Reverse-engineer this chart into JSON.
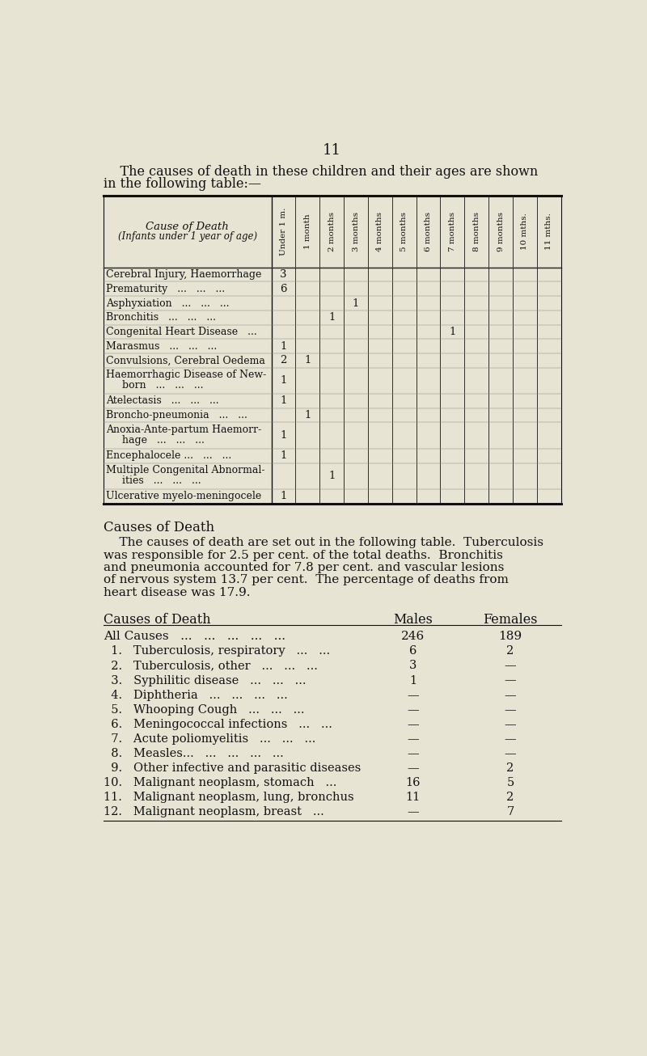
{
  "bg_color": "#e8e4d4",
  "page_number": "11",
  "intro_text_line1": "    The causes of death in these children and their ages are shown",
  "intro_text_line2": "in the following table:—",
  "table1": {
    "col_header_label_line1": "Cause of Death",
    "col_header_label_line2": "(Infants under 1 year of age)",
    "col_headers": [
      "Under 1 m.",
      "1 month",
      "2 months",
      "3 months",
      "4 months",
      "5 months",
      "6 months",
      "7 months",
      "8 months",
      "9 months",
      "10 mths.",
      "11 mths."
    ],
    "rows": [
      {
        "cause1": "Cerebral Injury, Haemorrhage",
        "cause2": "",
        "values": [
          "3",
          "",
          "",
          "",
          "",
          "",
          "",
          "",
          "",
          "",
          "",
          ""
        ]
      },
      {
        "cause1": "Prematurity   ...   ...   ...",
        "cause2": "",
        "values": [
          "6",
          "",
          "",
          "",
          "",
          "",
          "",
          "",
          "",
          "",
          "",
          ""
        ]
      },
      {
        "cause1": "Asphyxiation   ...   ...   ...",
        "cause2": "",
        "values": [
          "",
          "",
          "",
          "1",
          "",
          "",
          "",
          "",
          "",
          "",
          "",
          ""
        ]
      },
      {
        "cause1": "Bronchitis   ...   ...   ...",
        "cause2": "",
        "values": [
          "",
          "",
          "1",
          "",
          "",
          "",
          "",
          "",
          "",
          "",
          "",
          ""
        ]
      },
      {
        "cause1": "Congenital Heart Disease   ...",
        "cause2": "",
        "values": [
          "",
          "",
          "",
          "",
          "",
          "",
          "",
          "1",
          "",
          "",
          "",
          ""
        ]
      },
      {
        "cause1": "Marasmus   ...   ...   ...",
        "cause2": "",
        "values": [
          "1",
          "",
          "",
          "",
          "",
          "",
          "",
          "",
          "",
          "",
          "",
          ""
        ]
      },
      {
        "cause1": "Convulsions, Cerebral Oedema",
        "cause2": "",
        "values": [
          "2",
          "1",
          "",
          "",
          "",
          "",
          "",
          "",
          "",
          "",
          "",
          ""
        ]
      },
      {
        "cause1": "Haemorrhagic Disease of New-",
        "cause2": "     born   ...   ...   ...",
        "values": [
          "1",
          "",
          "",
          "",
          "",
          "",
          "",
          "",
          "",
          "",
          "",
          ""
        ]
      },
      {
        "cause1": "Atelectasis   ...   ...   ...",
        "cause2": "",
        "values": [
          "1",
          "",
          "",
          "",
          "",
          "",
          "",
          "",
          "",
          "",
          "",
          ""
        ]
      },
      {
        "cause1": "Broncho-pneumonia   ...   ...",
        "cause2": "",
        "values": [
          "",
          "1",
          "",
          "",
          "",
          "",
          "",
          "",
          "",
          "",
          "",
          ""
        ]
      },
      {
        "cause1": "Anoxia-Ante-partum Haemorr-",
        "cause2": "     hage   ...   ...   ...",
        "values": [
          "1",
          "",
          "",
          "",
          "",
          "",
          "",
          "",
          "",
          "",
          "",
          ""
        ]
      },
      {
        "cause1": "Encephalocele ...   ...   ...",
        "cause2": "",
        "values": [
          "1",
          "",
          "",
          "",
          "",
          "",
          "",
          "",
          "",
          "",
          "",
          ""
        ]
      },
      {
        "cause1": "Multiple Congenital Abnormal-",
        "cause2": "     ities   ...   ...   ...",
        "values": [
          "",
          "",
          "1",
          "",
          "",
          "",
          "",
          "",
          "",
          "",
          "",
          ""
        ]
      },
      {
        "cause1": "Ulcerative myelo-meningocele",
        "cause2": "",
        "values": [
          "1",
          "",
          "",
          "",
          "",
          "",
          "",
          "",
          "",
          "",
          "",
          ""
        ]
      }
    ]
  },
  "section2_title": "Causes of Death",
  "section2_para": "    The causes of death are set out in the following table.  Tuberculosis was responsible for 2.5 per cent. of the total deaths.  Bronchitis and pneumonia accounted for 7.8 per cent. and vascular lesions of nervous system 13.7 per cent.  The percentage of deaths from heart disease was 17.9.",
  "table2": {
    "col1_label": "Causes of Death",
    "col2_label": "Males",
    "col3_label": "Females",
    "rows": [
      {
        "cause": "All Causes   ...   ...   ...   ...   ...",
        "males": "246",
        "females": "189"
      },
      {
        "cause": "  1.   Tuberculosis, respiratory   ...   ...",
        "males": "6",
        "females": "2"
      },
      {
        "cause": "  2.   Tuberculosis, other   ...   ...   ...",
        "males": "3",
        "females": "—"
      },
      {
        "cause": "  3.   Syphilitic disease   ...   ...   ...",
        "males": "1",
        "females": "—"
      },
      {
        "cause": "  4.   Diphtheria   ...   ...   ...   ...",
        "males": "—",
        "females": "—"
      },
      {
        "cause": "  5.   Whooping Cough   ...   ...   ...",
        "males": "—",
        "females": "—"
      },
      {
        "cause": "  6.   Meningococcal infections   ...   ...",
        "males": "—",
        "females": "—"
      },
      {
        "cause": "  7.   Acute poliomyelitis   ...   ...   ...",
        "males": "—",
        "females": "—"
      },
      {
        "cause": "  8.   Measles...   ...   ...   ...   ...",
        "males": "—",
        "females": "—"
      },
      {
        "cause": "  9.   Other infective and parasitic diseases",
        "males": "—",
        "females": "2"
      },
      {
        "cause": "10.   Malignant neoplasm, stomach   ...",
        "males": "16",
        "females": "5"
      },
      {
        "cause": "11.   Malignant neoplasm, lung, bronchus",
        "males": "11",
        "females": "2"
      },
      {
        "cause": "12.   Malignant neoplasm, breast   ...",
        "males": "—",
        "females": "7"
      }
    ]
  }
}
